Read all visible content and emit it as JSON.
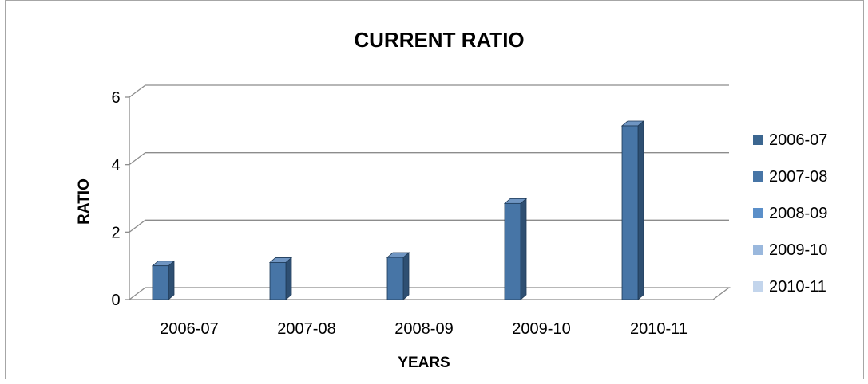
{
  "chart_data": {
    "type": "bar",
    "title": "CURRENT RATIO",
    "xlabel": "YEARS",
    "ylabel": "RATIO",
    "categories": [
      "2006-07",
      "2007-08",
      "2008-09",
      "2009-10",
      "2010-11"
    ],
    "values": [
      1.0,
      1.1,
      1.25,
      2.85,
      5.15
    ],
    "ylim": [
      0,
      6
    ],
    "yticks": [
      0,
      2,
      4,
      6
    ],
    "grid": true,
    "three_d": true,
    "legend": {
      "placement": "right",
      "entries": [
        {
          "label": "2006-07",
          "color": "#3b6690"
        },
        {
          "label": "2007-08",
          "color": "#4775a6"
        },
        {
          "label": "2008-09",
          "color": "#5b8fc9"
        },
        {
          "label": "2009-10",
          "color": "#9ab8dd"
        },
        {
          "label": "2010-11",
          "color": "#c3d5ec"
        }
      ]
    },
    "colors": {
      "bar_front": "#4775a6",
      "bar_side": "#2e4f72",
      "bar_top": "#6f95c2",
      "grid": "#8c8c8c",
      "text": "#000000"
    }
  }
}
